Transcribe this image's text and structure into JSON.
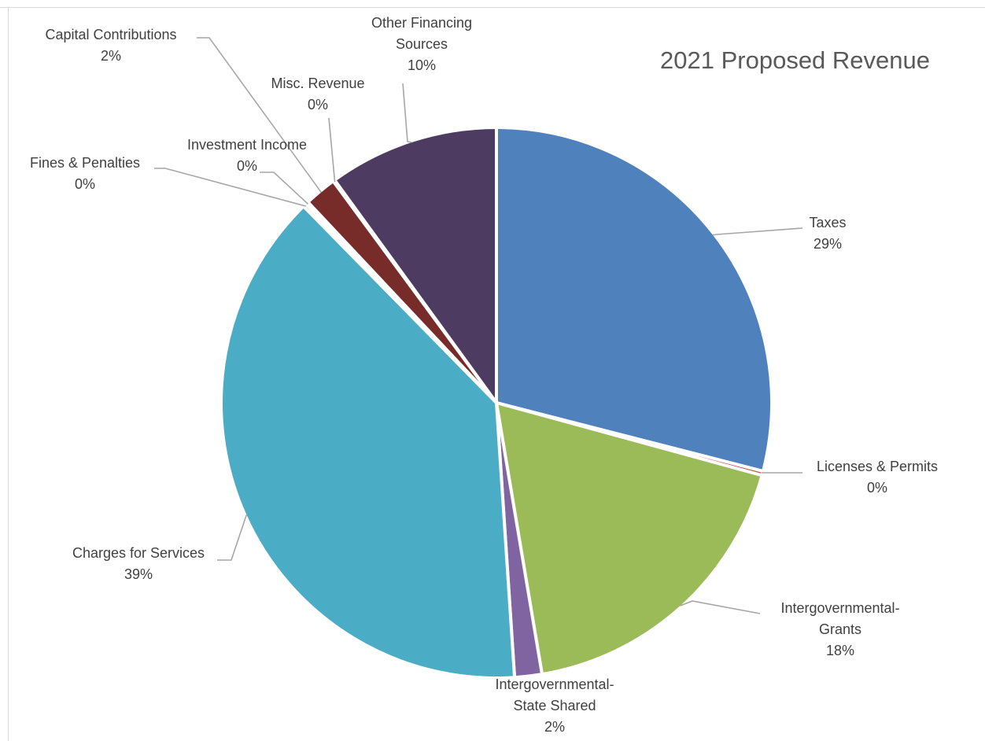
{
  "chart_data": {
    "type": "pie",
    "title": "2021 Proposed Revenue",
    "slices": [
      {
        "name": "Taxes",
        "label": [
          "Taxes"
        ],
        "pct_label": "29%",
        "value": 29.0,
        "color": "#4f81bd"
      },
      {
        "name": "Licenses & Permits",
        "label": [
          "Licenses & Permits"
        ],
        "pct_label": "0%",
        "value": 0.25,
        "color": "#c0504d"
      },
      {
        "name": "Intergovernmental-Grants",
        "label": [
          "Intergovernmental-",
          "Grants"
        ],
        "pct_label": "18%",
        "value": 18.1,
        "color": "#9bbb59"
      },
      {
        "name": "Intergovernmental-State Shared",
        "label": [
          "Intergovernmental-",
          "State Shared"
        ],
        "pct_label": "2%",
        "value": 1.6,
        "color": "#8064a2"
      },
      {
        "name": "Charges for Services",
        "label": [
          "Charges for Services"
        ],
        "pct_label": "39%",
        "value": 38.7,
        "color": "#4bacc6"
      },
      {
        "name": "Fines & Penalties",
        "label": [
          "Fines & Penalties"
        ],
        "pct_label": "0%",
        "value": 0.2,
        "color": "#f79646"
      },
      {
        "name": "Investment Income",
        "label": [
          "Investment Income"
        ],
        "pct_label": "0%",
        "value": 0.15,
        "color": "#2c4d75"
      },
      {
        "name": "Capital Contributions",
        "label": [
          "Capital Contributions"
        ],
        "pct_label": "2%",
        "value": 1.9,
        "color": "#772c2a"
      },
      {
        "name": "Misc. Revenue",
        "label": [
          "Misc. Revenue"
        ],
        "pct_label": "0%",
        "value": 0.1,
        "color": "#5f7530"
      },
      {
        "name": "Other Financing Sources",
        "label": [
          "Other Financing",
          "Sources"
        ],
        "pct_label": "10%",
        "value": 10.0,
        "color": "#4d3b62"
      }
    ]
  }
}
